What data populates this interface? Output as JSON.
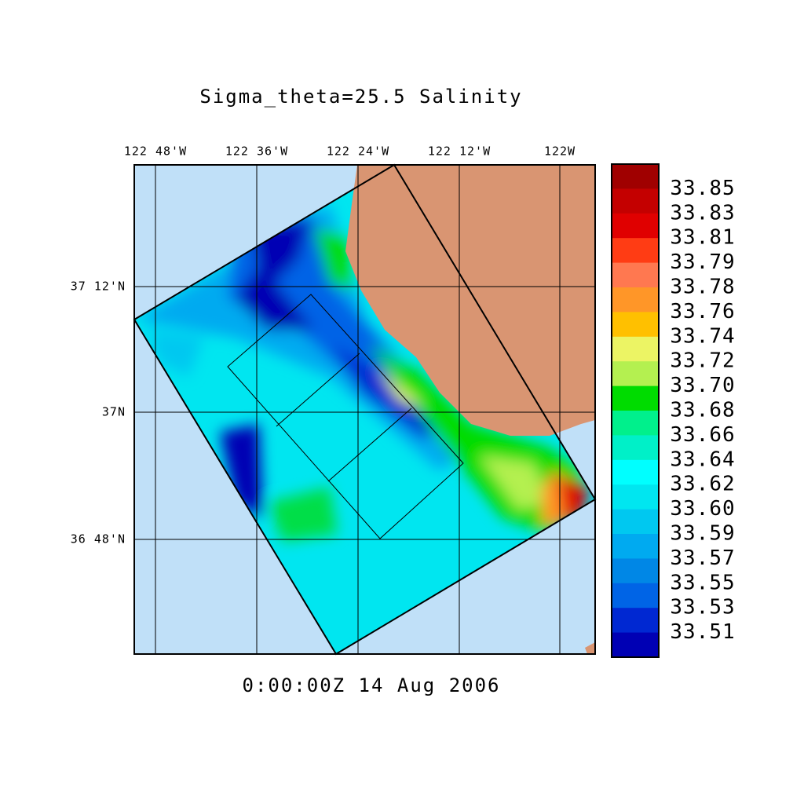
{
  "title": "Sigma_theta=25.5 Salinity",
  "lon_labels": [
    "122 48'W",
    "122 36'W",
    "122 24'W",
    "122 12'W",
    "122W"
  ],
  "lat_labels": [
    "37 12'N",
    "37N",
    "36 48'N"
  ],
  "colorbar": {
    "labels": [
      "33.85",
      "33.83",
      "33.81",
      "33.79",
      "33.78",
      "33.76",
      "33.74",
      "33.72",
      "33.70",
      "33.68",
      "33.66",
      "33.64",
      "33.62",
      "33.60",
      "33.59",
      "33.57",
      "33.55",
      "33.53",
      "33.51"
    ],
    "colors": [
      "#a00000",
      "#c40000",
      "#e00000",
      "#ff3c14",
      "#ff7850",
      "#ff9628",
      "#ffc000",
      "#ecf464",
      "#b4f050",
      "#00dc00",
      "#00f08c",
      "#00f0c8",
      "#00ffff",
      "#00e6f0",
      "#00c8f0",
      "#00aaf0",
      "#0087e6",
      "#0064e6",
      "#0028d2",
      "#0000b4"
    ]
  },
  "time_label": "0:00:00Z  14 Aug 2006"
}
